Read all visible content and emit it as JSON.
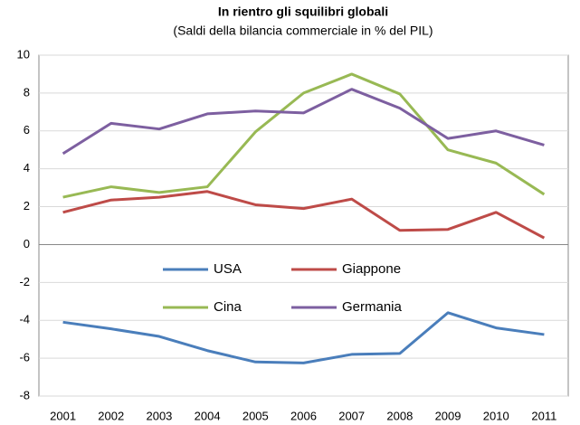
{
  "chart_data": {
    "type": "line",
    "title": "In rientro gli squilibri globali",
    "subtitle": "(Saldi della bilancia commerciale in % del PIL)",
    "categories": [
      "2001",
      "2002",
      "2003",
      "2004",
      "2005",
      "2006",
      "2007",
      "2008",
      "2009",
      "2010",
      "2011"
    ],
    "series": [
      {
        "name": "USA",
        "color": "#4a7ebb",
        "values": [
          -4.1,
          -4.45,
          -4.85,
          -5.6,
          -6.2,
          -6.25,
          -5.8,
          -5.75,
          -3.6,
          -4.4,
          -4.75
        ]
      },
      {
        "name": "Giappone",
        "color": "#be4b48",
        "values": [
          1.7,
          2.35,
          2.5,
          2.8,
          2.1,
          1.9,
          2.4,
          0.75,
          0.8,
          1.7,
          0.35
        ]
      },
      {
        "name": "Cina",
        "color": "#98b954",
        "values": [
          2.5,
          3.05,
          2.75,
          3.05,
          5.95,
          8.0,
          9.0,
          7.95,
          5.0,
          4.3,
          2.65
        ]
      },
      {
        "name": "Germania",
        "color": "#7d5fa0",
        "values": [
          4.8,
          6.4,
          6.1,
          6.9,
          7.05,
          6.95,
          8.2,
          7.2,
          5.6,
          6.0,
          5.25
        ]
      }
    ],
    "ylim": [
      -8,
      10
    ],
    "yticks": [
      -8,
      -6,
      -4,
      -2,
      0,
      2,
      4,
      6,
      8,
      10
    ],
    "grid": true,
    "legend": "center"
  }
}
